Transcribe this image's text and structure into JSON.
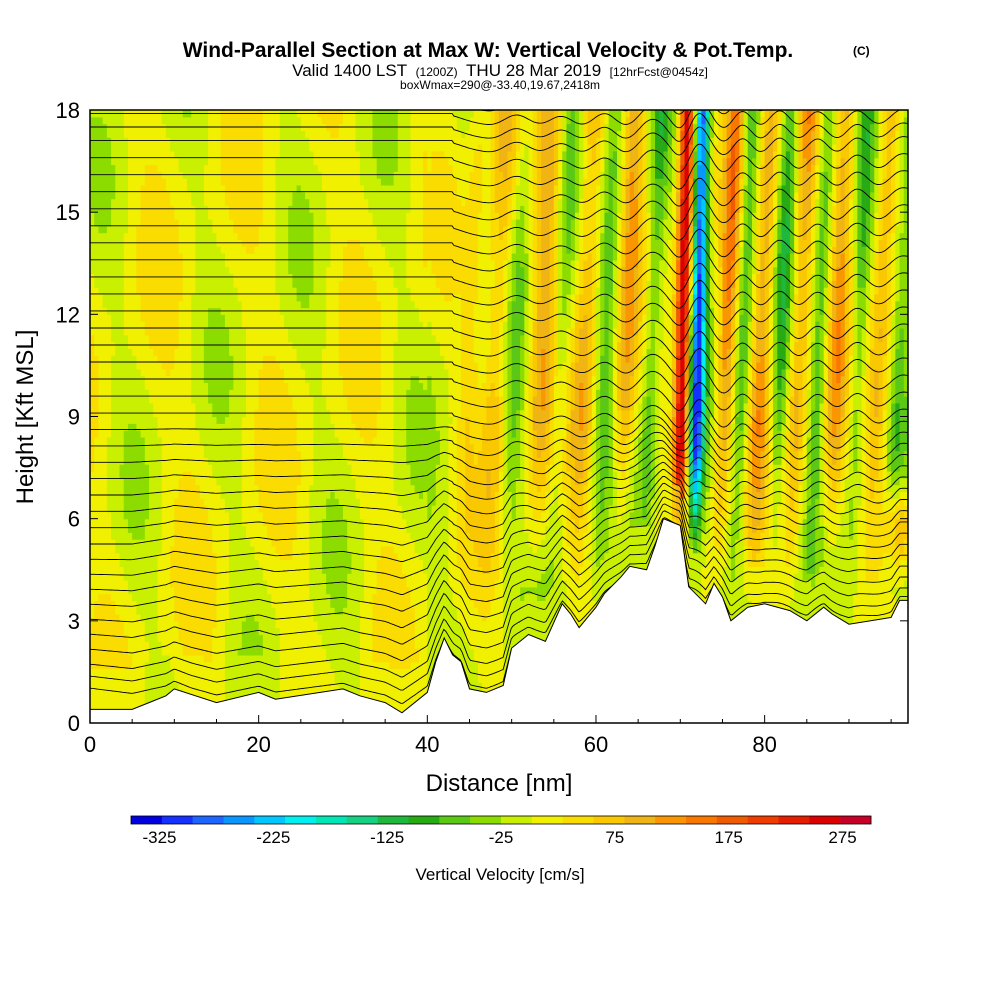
{
  "chart_data": {
    "type": "heatmap",
    "title": "Wind-Parallel Section at Max W: Vertical Velocity & Pot.Temp.",
    "title_copyright": "(C)",
    "subtitle_valid": "Valid 1400 LST",
    "subtitle_utc": "(1200Z)",
    "subtitle_date": "THU 28 Mar 2019",
    "subtitle_fcst": "[12hrFcst@0454z]",
    "subtitle_box": "boxWmax=290@-33.40,19.67,2418m",
    "xlabel": "Distance [nm]",
    "ylabel": "Height [Kft MSL]",
    "xlim": [
      0,
      97
    ],
    "ylim": [
      0,
      18
    ],
    "x_ticks": [
      0,
      20,
      40,
      60,
      80
    ],
    "y_ticks": [
      0,
      3,
      6,
      9,
      12,
      15,
      18
    ],
    "colorbar": {
      "label": "Vertical Velocity [cm/s]",
      "range": [
        -350,
        300
      ],
      "tick_values": [
        -325,
        -225,
        -125,
        -25,
        75,
        175,
        275
      ],
      "colors": [
        "#0000e0",
        "#1530ff",
        "#1e64ff",
        "#0a96ff",
        "#00c8ff",
        "#00f0f0",
        "#00e6b4",
        "#14d282",
        "#1eb93c",
        "#28aa14",
        "#5ac814",
        "#8cdc00",
        "#c8f000",
        "#f0f000",
        "#fadc00",
        "#fac800",
        "#f0b414",
        "#fa9600",
        "#fa7800",
        "#f05a00",
        "#f03c00",
        "#e61e00",
        "#dc0000",
        "#c80028"
      ]
    },
    "terrain": {
      "x": [
        0,
        5,
        7,
        9,
        10,
        15,
        20,
        22,
        30,
        32,
        35,
        37,
        40,
        41,
        42,
        43,
        44,
        45,
        47,
        49,
        50,
        52,
        54,
        56,
        57,
        58,
        60,
        61,
        63,
        64,
        66,
        67,
        68,
        70,
        71,
        73,
        74,
        75,
        76,
        78,
        80,
        83,
        85,
        87,
        88,
        90,
        95,
        96,
        97
      ],
      "y": [
        0.4,
        0.4,
        0.6,
        0.8,
        1.0,
        0.6,
        0.9,
        0.7,
        1.0,
        0.8,
        0.6,
        0.3,
        0.9,
        1.8,
        2.5,
        2.0,
        1.8,
        1.0,
        0.9,
        1.1,
        2.2,
        2.6,
        2.4,
        3.5,
        3.2,
        2.8,
        3.4,
        3.8,
        4.3,
        4.6,
        4.5,
        5.2,
        6.0,
        5.8,
        4.0,
        3.5,
        4.1,
        3.7,
        3.0,
        3.4,
        3.5,
        3.3,
        3.0,
        3.4,
        3.2,
        2.9,
        3.1,
        3.6,
        3.6
      ]
    },
    "wave_columns": [
      {
        "x": 45.0,
        "w": 1.2,
        "amp": 40
      },
      {
        "x": 48.0,
        "w": 1.4,
        "amp": 85
      },
      {
        "x": 50.5,
        "w": 1.1,
        "amp": -45
      },
      {
        "x": 53.5,
        "w": 1.5,
        "amp": 90
      },
      {
        "x": 55.8,
        "w": 1.0,
        "amp": -50
      },
      {
        "x": 58.5,
        "w": 1.4,
        "amp": 95
      },
      {
        "x": 61.0,
        "w": 1.0,
        "amp": -60
      },
      {
        "x": 63.5,
        "w": 1.2,
        "amp": 100
      },
      {
        "x": 66.5,
        "w": 1.0,
        "amp": -75
      },
      {
        "x": 70.2,
        "w": 0.9,
        "amp": 285
      },
      {
        "x": 72.0,
        "w": 0.9,
        "amp": -290
      },
      {
        "x": 75.3,
        "w": 1.0,
        "amp": 130
      },
      {
        "x": 77.3,
        "w": 0.9,
        "amp": -85
      },
      {
        "x": 79.5,
        "w": 1.1,
        "amp": 110
      },
      {
        "x": 81.8,
        "w": 0.9,
        "amp": -80
      },
      {
        "x": 84.0,
        "w": 1.1,
        "amp": 105
      },
      {
        "x": 86.3,
        "w": 0.9,
        "amp": -70
      },
      {
        "x": 88.5,
        "w": 1.1,
        "amp": 100
      },
      {
        "x": 91.0,
        "w": 0.9,
        "amp": -65
      },
      {
        "x": 93.5,
        "w": 1.2,
        "amp": 90
      },
      {
        "x": 96.0,
        "w": 0.9,
        "amp": -50
      }
    ],
    "isentropes": {
      "count": 38,
      "base_heights": [
        0.3,
        0.7,
        1.1,
        1.6,
        2.1,
        2.6,
        3.1,
        3.6,
        4.1,
        4.6,
        5.1,
        5.6,
        6.1,
        6.6,
        7.1,
        7.6,
        8.1,
        8.6,
        9.1,
        9.6,
        10.1,
        10.6,
        11.1,
        11.6,
        12.1,
        12.6,
        13.1,
        13.6,
        14.1,
        14.6,
        15.1,
        15.6,
        16.1,
        16.6,
        17.1,
        17.5,
        17.9,
        18.3
      ]
    }
  }
}
